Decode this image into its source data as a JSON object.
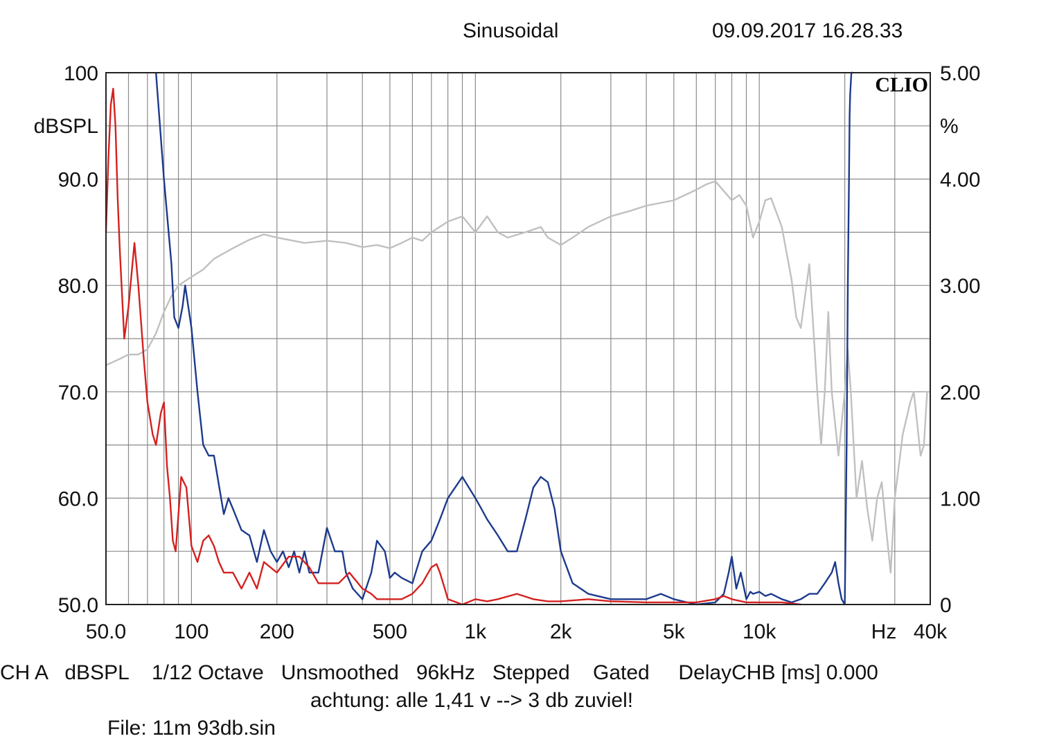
{
  "header": {
    "mode": "Sinusoidal",
    "timestamp": "09.09.2017 16.28.33"
  },
  "brand": "CLIO",
  "footer": {
    "settings_line": "CH A   dBSPL    1/12 Octave   Unsmoothed   96kHz   Stepped    Gated     DelayCHB [ms] 0.000",
    "comment": "achtung: alle 1,41 v --> 3 db zuviel!",
    "file": "File: 11m 93db.sin"
  },
  "colors": {
    "background": "#ffffff",
    "grid": "#8a8a8a",
    "frame": "#222222",
    "response": "#c0c0c0",
    "distortion_blue": "#1c3a8c",
    "distortion_red": "#d42020"
  },
  "chart_data": {
    "type": "line",
    "x_scale": "log",
    "xlim": [
      50,
      40000
    ],
    "ylim_left": [
      50,
      100
    ],
    "ylim_right": [
      0,
      5
    ],
    "grid": true,
    "left_unit": "dBSPL",
    "right_unit": "%",
    "x_unit": "Hz",
    "x_tick_labels": [
      {
        "value": 50,
        "label": "50.0"
      },
      {
        "value": 100,
        "label": "100"
      },
      {
        "value": 200,
        "label": "200"
      },
      {
        "value": 500,
        "label": "500"
      },
      {
        "value": 1000,
        "label": "1k"
      },
      {
        "value": 2000,
        "label": "2k"
      },
      {
        "value": 5000,
        "label": "5k"
      },
      {
        "value": 10000,
        "label": "10k"
      },
      {
        "value": 40000,
        "label": "40k"
      }
    ],
    "left_tick_labels": [
      {
        "value": 100,
        "label": "100"
      },
      {
        "value": 90,
        "label": "90.0"
      },
      {
        "value": 80,
        "label": "80.0"
      },
      {
        "value": 70,
        "label": "70.0"
      },
      {
        "value": 60,
        "label": "60.0"
      },
      {
        "value": 50,
        "label": "50.0"
      }
    ],
    "right_tick_labels": [
      {
        "value": 5,
        "label": "5.00"
      },
      {
        "value": 4,
        "label": "4.00"
      },
      {
        "value": 3,
        "label": "3.00"
      },
      {
        "value": 2,
        "label": "2.00"
      },
      {
        "value": 1,
        "label": "1.00"
      },
      {
        "value": 0,
        "label": "0"
      }
    ],
    "series": [
      {
        "key": "response",
        "axis": "left",
        "color": "#c0c0c0",
        "x": [
          50,
          55,
          60,
          65,
          70,
          75,
          80,
          85,
          90,
          100,
          110,
          120,
          140,
          160,
          180,
          200,
          250,
          300,
          350,
          400,
          450,
          500,
          550,
          600,
          650,
          700,
          800,
          900,
          1000,
          1100,
          1200,
          1300,
          1500,
          1700,
          1800,
          2000,
          2200,
          2500,
          3000,
          3500,
          4000,
          5000,
          6000,
          6500,
          7000,
          8000,
          8500,
          9000,
          9500,
          10000,
          10500,
          11000,
          12000,
          13000,
          13500,
          14000,
          15000,
          15500,
          16000,
          16500,
          17000,
          17500,
          18000,
          19000,
          20000,
          20500,
          21000,
          22000,
          23000,
          24000,
          25000,
          26000,
          27000,
          28000,
          29000,
          30000,
          32000,
          34000,
          35000,
          36000,
          37000,
          38000,
          39000,
          40000
        ],
        "y": [
          72.5,
          73,
          73.5,
          73.5,
          74,
          75.5,
          77.5,
          79,
          80,
          80.8,
          81.5,
          82.5,
          83.5,
          84.3,
          84.8,
          84.5,
          84,
          84.2,
          84,
          83.6,
          83.8,
          83.5,
          84,
          84.5,
          84.2,
          85,
          86,
          86.5,
          85,
          86.5,
          85,
          84.5,
          85,
          85.5,
          84.5,
          83.8,
          84.5,
          85.5,
          86.5,
          87,
          87.5,
          88,
          89,
          89.5,
          89.8,
          88,
          88.5,
          87.5,
          84.5,
          86,
          88,
          88.2,
          85.5,
          80.5,
          77,
          76,
          82,
          76,
          70,
          65,
          70,
          77.5,
          70,
          64,
          70,
          74,
          70,
          60,
          63.5,
          59,
          56,
          60,
          61.5,
          57,
          53,
          60,
          66,
          69,
          70,
          67,
          64,
          65,
          70,
          70
        ]
      },
      {
        "key": "distortion_blue",
        "axis": "right",
        "color": "#1c3a8c",
        "x": [
          75,
          80,
          85,
          87,
          90,
          93,
          95,
          100,
          105,
          110,
          115,
          120,
          130,
          135,
          140,
          150,
          160,
          170,
          180,
          190,
          200,
          210,
          220,
          230,
          240,
          250,
          260,
          280,
          300,
          320,
          340,
          350,
          370,
          400,
          430,
          450,
          480,
          500,
          520,
          550,
          600,
          650,
          700,
          750,
          800,
          900,
          1000,
          1050,
          1100,
          1200,
          1300,
          1400,
          1500,
          1600,
          1700,
          1800,
          1900,
          2000,
          2200,
          2500,
          3000,
          3500,
          4000,
          4500,
          5000,
          6000,
          7000,
          7500,
          7800,
          8000,
          8300,
          8600,
          9000,
          9300,
          9500,
          10000,
          10500,
          11000,
          12000,
          13000,
          14000,
          15000,
          16000,
          17000,
          18000,
          18500,
          19000,
          19500,
          20000,
          20300,
          20500,
          20700,
          20800,
          20900,
          21000,
          21100,
          21200,
          21300,
          21400
        ],
        "y": [
          5.0,
          4.0,
          3.2,
          2.7,
          2.6,
          2.8,
          3.0,
          2.6,
          2.0,
          1.5,
          1.4,
          1.4,
          0.85,
          1.0,
          0.9,
          0.7,
          0.65,
          0.4,
          0.7,
          0.5,
          0.4,
          0.5,
          0.35,
          0.5,
          0.3,
          0.5,
          0.3,
          0.3,
          0.72,
          0.5,
          0.5,
          0.3,
          0.15,
          0.05,
          0.3,
          0.6,
          0.5,
          0.25,
          0.3,
          0.25,
          0.2,
          0.5,
          0.6,
          0.8,
          1.0,
          1.2,
          1.0,
          0.9,
          0.8,
          0.65,
          0.5,
          0.5,
          0.8,
          1.1,
          1.2,
          1.15,
          0.9,
          0.5,
          0.2,
          0.1,
          0.05,
          0.05,
          0.05,
          0.1,
          0.05,
          0.0,
          0.02,
          0.1,
          0.3,
          0.45,
          0.15,
          0.3,
          0.05,
          0.12,
          0.1,
          0.12,
          0.08,
          0.1,
          0.05,
          0.02,
          0.05,
          0.1,
          0.1,
          0.2,
          0.3,
          0.4,
          0.2,
          0.05,
          0.0,
          1.5,
          3.0,
          4.0,
          4.6,
          4.8,
          4.9,
          5.0,
          5.0,
          5.0,
          5.0
        ]
      },
      {
        "key": "distortion_red",
        "axis": "right",
        "color": "#d42020",
        "x": [
          50,
          51,
          52,
          53,
          54,
          55,
          56,
          58,
          60,
          63,
          65,
          68,
          70,
          73,
          75,
          78,
          80,
          82,
          84,
          86,
          88,
          92,
          96,
          100,
          105,
          110,
          115,
          120,
          125,
          130,
          140,
          150,
          160,
          170,
          180,
          200,
          220,
          240,
          260,
          280,
          300,
          330,
          360,
          400,
          430,
          450,
          470,
          500,
          550,
          600,
          650,
          700,
          730,
          750,
          780,
          800,
          900,
          1000,
          1100,
          1200,
          1400,
          1600,
          1800,
          2000,
          2500,
          3000,
          4000,
          5000,
          6000,
          7000,
          7500,
          8000,
          9000,
          10000,
          12000,
          14000
        ],
        "y": [
          3.5,
          4.2,
          4.7,
          4.85,
          4.5,
          3.8,
          3.3,
          2.5,
          2.8,
          3.4,
          3.0,
          2.3,
          1.9,
          1.6,
          1.5,
          1.8,
          1.9,
          1.3,
          1.0,
          0.6,
          0.5,
          1.2,
          1.1,
          0.55,
          0.4,
          0.6,
          0.65,
          0.55,
          0.4,
          0.3,
          0.3,
          0.15,
          0.3,
          0.15,
          0.4,
          0.3,
          0.45,
          0.45,
          0.35,
          0.2,
          0.2,
          0.2,
          0.3,
          0.15,
          0.1,
          0.05,
          0.05,
          0.05,
          0.05,
          0.1,
          0.2,
          0.35,
          0.38,
          0.3,
          0.15,
          0.05,
          0.0,
          0.05,
          0.03,
          0.05,
          0.1,
          0.05,
          0.03,
          0.03,
          0.05,
          0.03,
          0.02,
          0.02,
          0.02,
          0.05,
          0.08,
          0.05,
          0.02,
          0.02,
          0.02,
          0.0
        ]
      }
    ]
  }
}
